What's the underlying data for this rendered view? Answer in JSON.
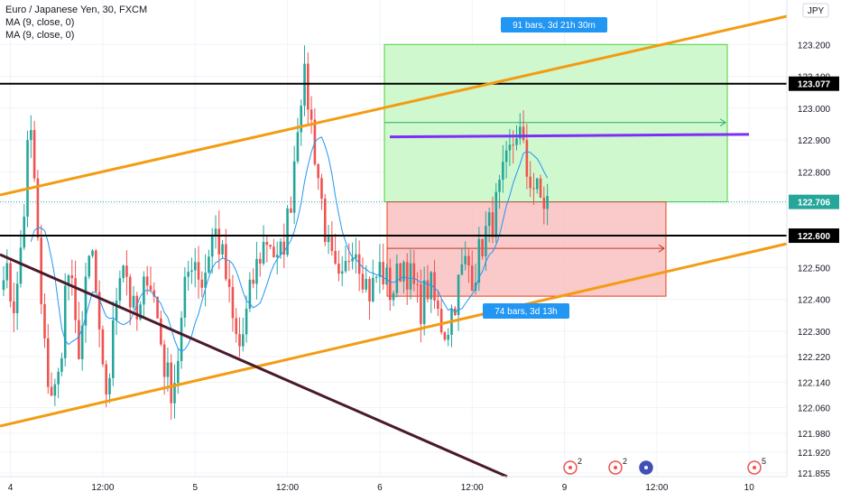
{
  "legend": {
    "title": "Euro / Japanese Yen, 30, FXCM",
    "ma1": "MA (9, close, 0)",
    "ma2": "MA (9, close, 0)"
  },
  "currency_label": "JPY",
  "colors": {
    "up": "#26a69a",
    "down": "#ef5350",
    "ma": "#2196f3",
    "channel": "#f39c12",
    "downtrend": "#4a1a2a",
    "purple": "#7b2ff7",
    "level": "#000000",
    "long_profit": "#c8f7c5",
    "long_loss": "#f9c0c0",
    "badge": "#2196f3",
    "price_badge": "#26a69a"
  },
  "chart_data": {
    "type": "candlestick",
    "instrument": "Euro / Japanese Yen",
    "timeframe": "30",
    "source": "FXCM",
    "ylim": [
      121.855,
      123.3
    ],
    "y_ticks": [
      "123.200",
      "123.100",
      "123.000",
      "122.900",
      "122.800",
      "122.700",
      "122.600",
      "122.500",
      "122.400",
      "122.300",
      "122.220",
      "122.140",
      "122.060",
      "121.980",
      "121.920",
      "121.855"
    ],
    "y_tick_values": [
      123.2,
      123.1,
      123.0,
      122.9,
      122.8,
      122.7,
      122.6,
      122.5,
      122.4,
      122.3,
      122.22,
      122.14,
      122.06,
      121.98,
      121.92,
      121.855
    ],
    "x_ticks": [
      "4",
      "12:00",
      "5",
      "12:00",
      "6",
      "12:00",
      "9",
      "12:00",
      "10"
    ],
    "x_tick_bars": [
      2,
      29,
      56,
      83,
      110,
      137,
      164,
      191,
      218
    ],
    "bar_count": 230,
    "candles_close_path": [
      122.52,
      122.45,
      122.4,
      122.38,
      122.55,
      122.7,
      122.95,
      122.85,
      122.6,
      122.35,
      122.2,
      122.12,
      122.1,
      122.15,
      122.3,
      122.5,
      122.45,
      122.3,
      122.25,
      122.35,
      122.5,
      122.55,
      122.4,
      122.2,
      122.1,
      122.15,
      122.3,
      122.45,
      122.55,
      122.5,
      122.4,
      122.35,
      122.32,
      122.4,
      122.5,
      122.45,
      122.38,
      122.3,
      122.2,
      122.15,
      122.12,
      122.18,
      122.3,
      122.42,
      122.5,
      122.55,
      122.5,
      122.45,
      122.5,
      122.58,
      122.62,
      122.58,
      122.52,
      122.45,
      122.35,
      122.28,
      122.25,
      122.3,
      122.38,
      122.45,
      122.5,
      122.55,
      122.58,
      122.6,
      122.55,
      122.5,
      122.55,
      122.62,
      122.7,
      122.85,
      123.0,
      123.1,
      123.05,
      122.95,
      122.85,
      122.75,
      122.65,
      122.55,
      122.5,
      122.45,
      122.42,
      122.48,
      122.55,
      122.6,
      122.55,
      122.5,
      122.45,
      122.42,
      122.45,
      122.5,
      122.48,
      122.45,
      122.42,
      122.45,
      122.5,
      122.52,
      122.48,
      122.45,
      122.4,
      122.38,
      122.42,
      122.45,
      122.4,
      122.35,
      122.32,
      122.3,
      122.35,
      122.4,
      122.45,
      122.5,
      122.52,
      122.48,
      122.5,
      122.55,
      122.6,
      122.62,
      122.65,
      122.7,
      122.75,
      122.8,
      122.85,
      122.9,
      122.95,
      122.88,
      122.8,
      122.78,
      122.75,
      122.72,
      122.7,
      122.71
    ],
    "moving_average": "MA (9, close, 0)",
    "horizontal_levels": [
      123.077,
      122.6
    ],
    "purple_level": 122.91,
    "current_price": "122.706",
    "current_price_value": 122.706,
    "price_labels": [
      "123.077",
      "122.706",
      "122.600"
    ],
    "long_position": {
      "entry": 122.706,
      "target": 123.2,
      "stop": 122.41,
      "upper_badge": "91 bars, 3d 21h 30m",
      "lower_badge": "74 bars, 3d 13h"
    },
    "event_markers": [
      "2",
      "2",
      "",
      "5"
    ],
    "grid": true
  }
}
